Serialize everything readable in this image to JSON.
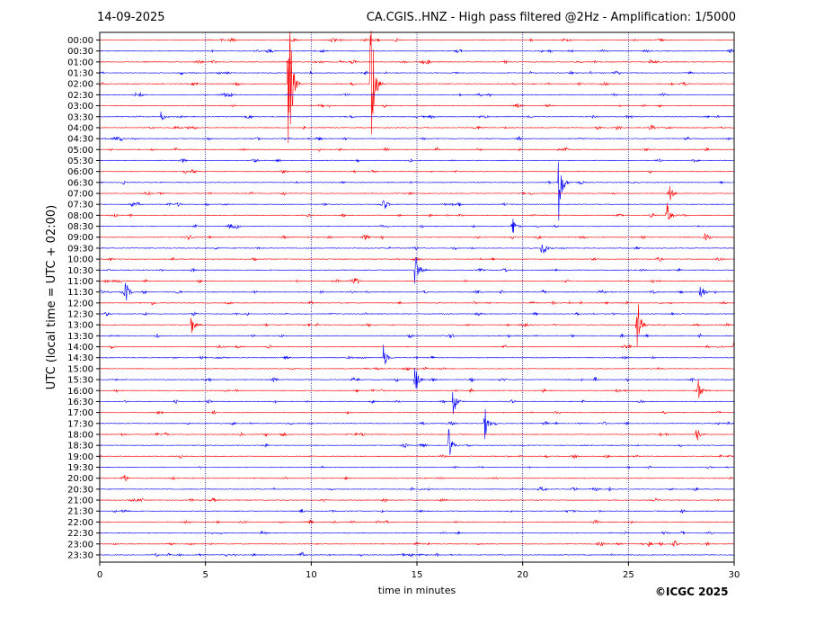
{
  "header": {
    "date": "14-09-2025",
    "title": "CA.CGIS..HNZ - High pass filtered @2Hz - Amplification: 1/5000"
  },
  "footer": {
    "copyright": "©ICGC 2025"
  },
  "colors": {
    "trace_a": "#ff0000",
    "trace_b": "#0000ff",
    "grid": "#000080",
    "frame": "#000000"
  },
  "chart_data": {
    "type": "line",
    "title": "CA.CGIS..HNZ - High pass filtered @2Hz - Amplification: 1/5000",
    "xlabel": "time in minutes",
    "ylabel": "UTC (local time = UTC + 02:00)",
    "xlim": [
      0,
      30
    ],
    "x_ticks": [
      "0",
      "5",
      "10",
      "15",
      "20",
      "25",
      "30"
    ],
    "x_grid_lines": [
      5,
      10,
      15,
      20,
      25
    ],
    "grid": "vertical dotted lines at tick positions",
    "row_labels": [
      "00:00",
      "00:30",
      "01:00",
      "01:30",
      "02:00",
      "02:30",
      "03:00",
      "03:30",
      "04:00",
      "04:30",
      "05:00",
      "05:30",
      "06:00",
      "06:30",
      "07:00",
      "07:30",
      "08:00",
      "08:30",
      "09:00",
      "09:30",
      "10:00",
      "10:30",
      "11:00",
      "11:30",
      "12:00",
      "12:30",
      "13:00",
      "13:30",
      "14:00",
      "14:30",
      "15:00",
      "15:30",
      "16:00",
      "16:30",
      "17:00",
      "17:30",
      "18:00",
      "18:30",
      "19:00",
      "19:30",
      "20:00",
      "20:30",
      "21:00",
      "21:30",
      "22:00",
      "22:30",
      "23:00",
      "23:30"
    ],
    "trace_colors": [
      "#ff0000",
      "#0000ff"
    ],
    "events": [
      {
        "row": "02:00",
        "minute": 8.9,
        "amplitude": 1.0
      },
      {
        "row": "02:00",
        "minute": 12.8,
        "amplitude": 1.0
      },
      {
        "row": "06:30",
        "minute": 21.7,
        "amplitude": 0.35
      },
      {
        "row": "13:00",
        "minute": 25.4,
        "amplitude": 0.3
      },
      {
        "row": "10:30",
        "minute": 14.9,
        "amplitude": 0.18
      },
      {
        "row": "15:30",
        "minute": 14.9,
        "amplitude": 0.15
      },
      {
        "row": "16:30",
        "minute": 16.7,
        "amplitude": 0.15
      },
      {
        "row": "17:30",
        "minute": 18.2,
        "amplitude": 0.14
      },
      {
        "row": "18:30",
        "minute": 16.5,
        "amplitude": 0.14
      },
      {
        "row": "14:30",
        "minute": 13.4,
        "amplitude": 0.12
      },
      {
        "row": "09:30",
        "minute": 20.9,
        "amplitude": 0.12
      },
      {
        "row": "08:00",
        "minute": 26.8,
        "amplitude": 0.12
      },
      {
        "row": "13:00",
        "minute": 4.3,
        "amplitude": 0.1
      },
      {
        "row": "11:30",
        "minute": 1.2,
        "amplitude": 0.1
      },
      {
        "row": "11:30",
        "minute": 28.4,
        "amplitude": 0.1
      },
      {
        "row": "16:00",
        "minute": 28.3,
        "amplitude": 0.1
      },
      {
        "row": "14:00",
        "minute": 30.0,
        "amplitude": 0.1
      },
      {
        "row": "08:30",
        "minute": 19.5,
        "amplitude": 0.1
      },
      {
        "row": "07:30",
        "minute": 13.4,
        "amplitude": 0.08
      },
      {
        "row": "07:00",
        "minute": 26.9,
        "amplitude": 0.1
      },
      {
        "row": "09:00",
        "minute": 28.6,
        "amplitude": 0.08
      },
      {
        "row": "18:00",
        "minute": 28.2,
        "amplitude": 0.08
      },
      {
        "row": "03:30",
        "minute": 2.9,
        "amplitude": 0.05
      }
    ]
  }
}
